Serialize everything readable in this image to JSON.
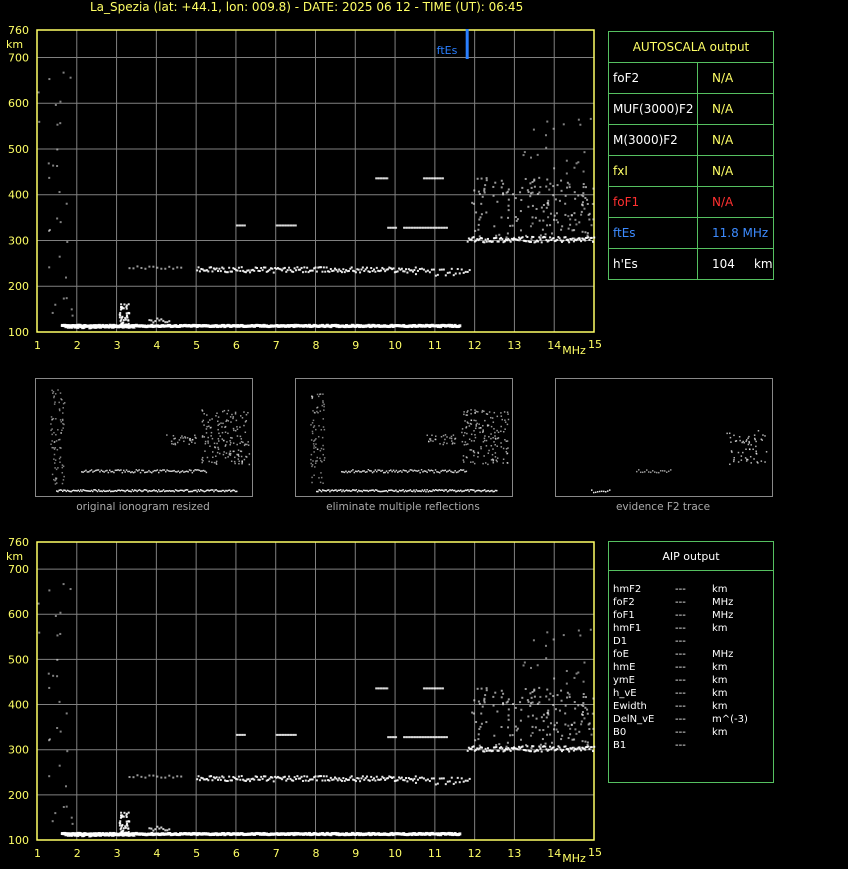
{
  "header": {
    "title": "La_Spezia (lat: +44.1, lon: 009.8) - DATE: 2025 06 12 - TIME (UT): 06:45"
  },
  "plot": {
    "y_unit": "km",
    "x_unit": "MHz",
    "y_ticks": [
      "760",
      "700",
      "600",
      "500",
      "400",
      "300",
      "200",
      "100"
    ],
    "x_ticks": [
      "1",
      "2",
      "3",
      "4",
      "5",
      "6",
      "7",
      "8",
      "9",
      "10",
      "11",
      "12",
      "13",
      "14",
      "15"
    ],
    "ftes_marker": "ftEs",
    "ftes_freq_mhz": 11.8,
    "colors": {
      "axis": "#ffff66",
      "grid": "#808080",
      "trace": "#ffffff",
      "marker": "#2a7fff"
    }
  },
  "autoscala": {
    "title": "AUTOSCALA output",
    "rows": [
      {
        "key": "foF2",
        "value": "N/A",
        "color": "#ffffff",
        "vcolor": "#ffff66"
      },
      {
        "key": "MUF(3000)F2",
        "value": "N/A",
        "color": "#ffffff",
        "vcolor": "#ffff66"
      },
      {
        "key": "M(3000)F2",
        "value": "N/A",
        "color": "#ffffff",
        "vcolor": "#ffff66"
      },
      {
        "key": "fxI",
        "value": "N/A",
        "color": "#ffff66",
        "vcolor": "#ffff66"
      },
      {
        "key": "foF1",
        "value": "N/A",
        "color": "#ff3030",
        "vcolor": "#ff3030"
      },
      {
        "key": "ftEs",
        "value": "11.8 MHz",
        "color": "#3d8bff",
        "vcolor": "#3d8bff"
      },
      {
        "key": "h'Es",
        "value": "104     km",
        "color": "#ffffff",
        "vcolor": "#ffffff"
      }
    ]
  },
  "thumbnails": [
    {
      "caption": "original ionogram resized"
    },
    {
      "caption": "eliminate multiple reflections"
    },
    {
      "caption": "evidence F2 trace"
    }
  ],
  "aip": {
    "title": "AIP output",
    "rows": [
      {
        "key": "hmF2",
        "dash": "---",
        "unit": "km"
      },
      {
        "key": "foF2",
        "dash": "---",
        "unit": "MHz"
      },
      {
        "key": "foF1",
        "dash": "---",
        "unit": "MHz"
      },
      {
        "key": "hmF1",
        "dash": "---",
        "unit": "km"
      },
      {
        "key": "D1",
        "dash": "---",
        "unit": ""
      },
      {
        "key": "foE",
        "dash": "---",
        "unit": "MHz"
      },
      {
        "key": "hmE",
        "dash": "---",
        "unit": "km"
      },
      {
        "key": "ymE",
        "dash": "---",
        "unit": "km"
      },
      {
        "key": "h_vE",
        "dash": "---",
        "unit": "km"
      },
      {
        "key": "Ewidth",
        "dash": "---",
        "unit": "km"
      },
      {
        "key": "DelN_vE",
        "dash": "---",
        "unit": "m^(-3)"
      },
      {
        "key": "B0",
        "dash": "---",
        "unit": "km"
      },
      {
        "key": "B1",
        "dash": "---",
        "unit": ""
      }
    ]
  }
}
